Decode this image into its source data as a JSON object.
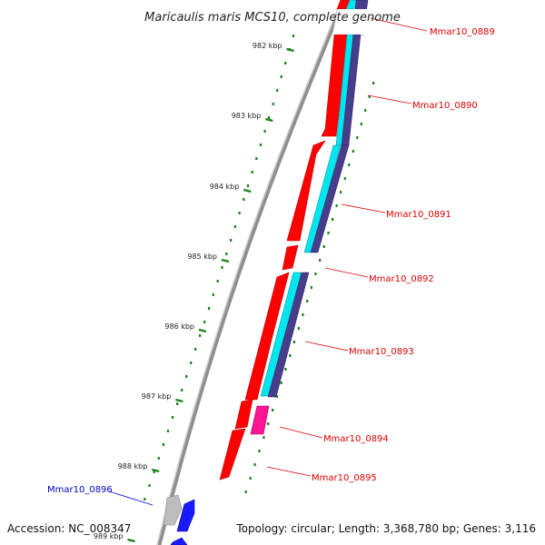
{
  "title": "Maricaulis maris MCS10, complete genome",
  "footer": {
    "accession": "Accession: NC_008347",
    "topology": "Topology: circular; Length: 3,368,780 bp; Genes: 3,116"
  },
  "colors": {
    "backbone": "#8a8a8a",
    "cds_forward": "#ff0000",
    "cds_reverse": "#ff1493",
    "trna": "#00e5ee",
    "gc": "#483d8b",
    "blast": "#1a1aff",
    "grey_feature": "#bdbdbd",
    "tick": "#1a7f1a",
    "label_red": "#dd0000",
    "label_blue": "#0000cc"
  },
  "ticks": [
    "982 kbp",
    "983 kbp",
    "984 kbp",
    "985 kbp",
    "986 kbp",
    "987 kbp",
    "988 kbp",
    "989 kbp"
  ],
  "genes": [
    {
      "id": "Mmar10_0889",
      "color": "red"
    },
    {
      "id": "Mmar10_0890",
      "color": "red"
    },
    {
      "id": "Mmar10_0891",
      "color": "red"
    },
    {
      "id": "Mmar10_0892",
      "color": "red"
    },
    {
      "id": "Mmar10_0893",
      "color": "red"
    },
    {
      "id": "Mmar10_0894",
      "color": "red"
    },
    {
      "id": "Mmar10_0895",
      "color": "red"
    },
    {
      "id": "Mmar10_0896",
      "color": "blue"
    }
  ]
}
